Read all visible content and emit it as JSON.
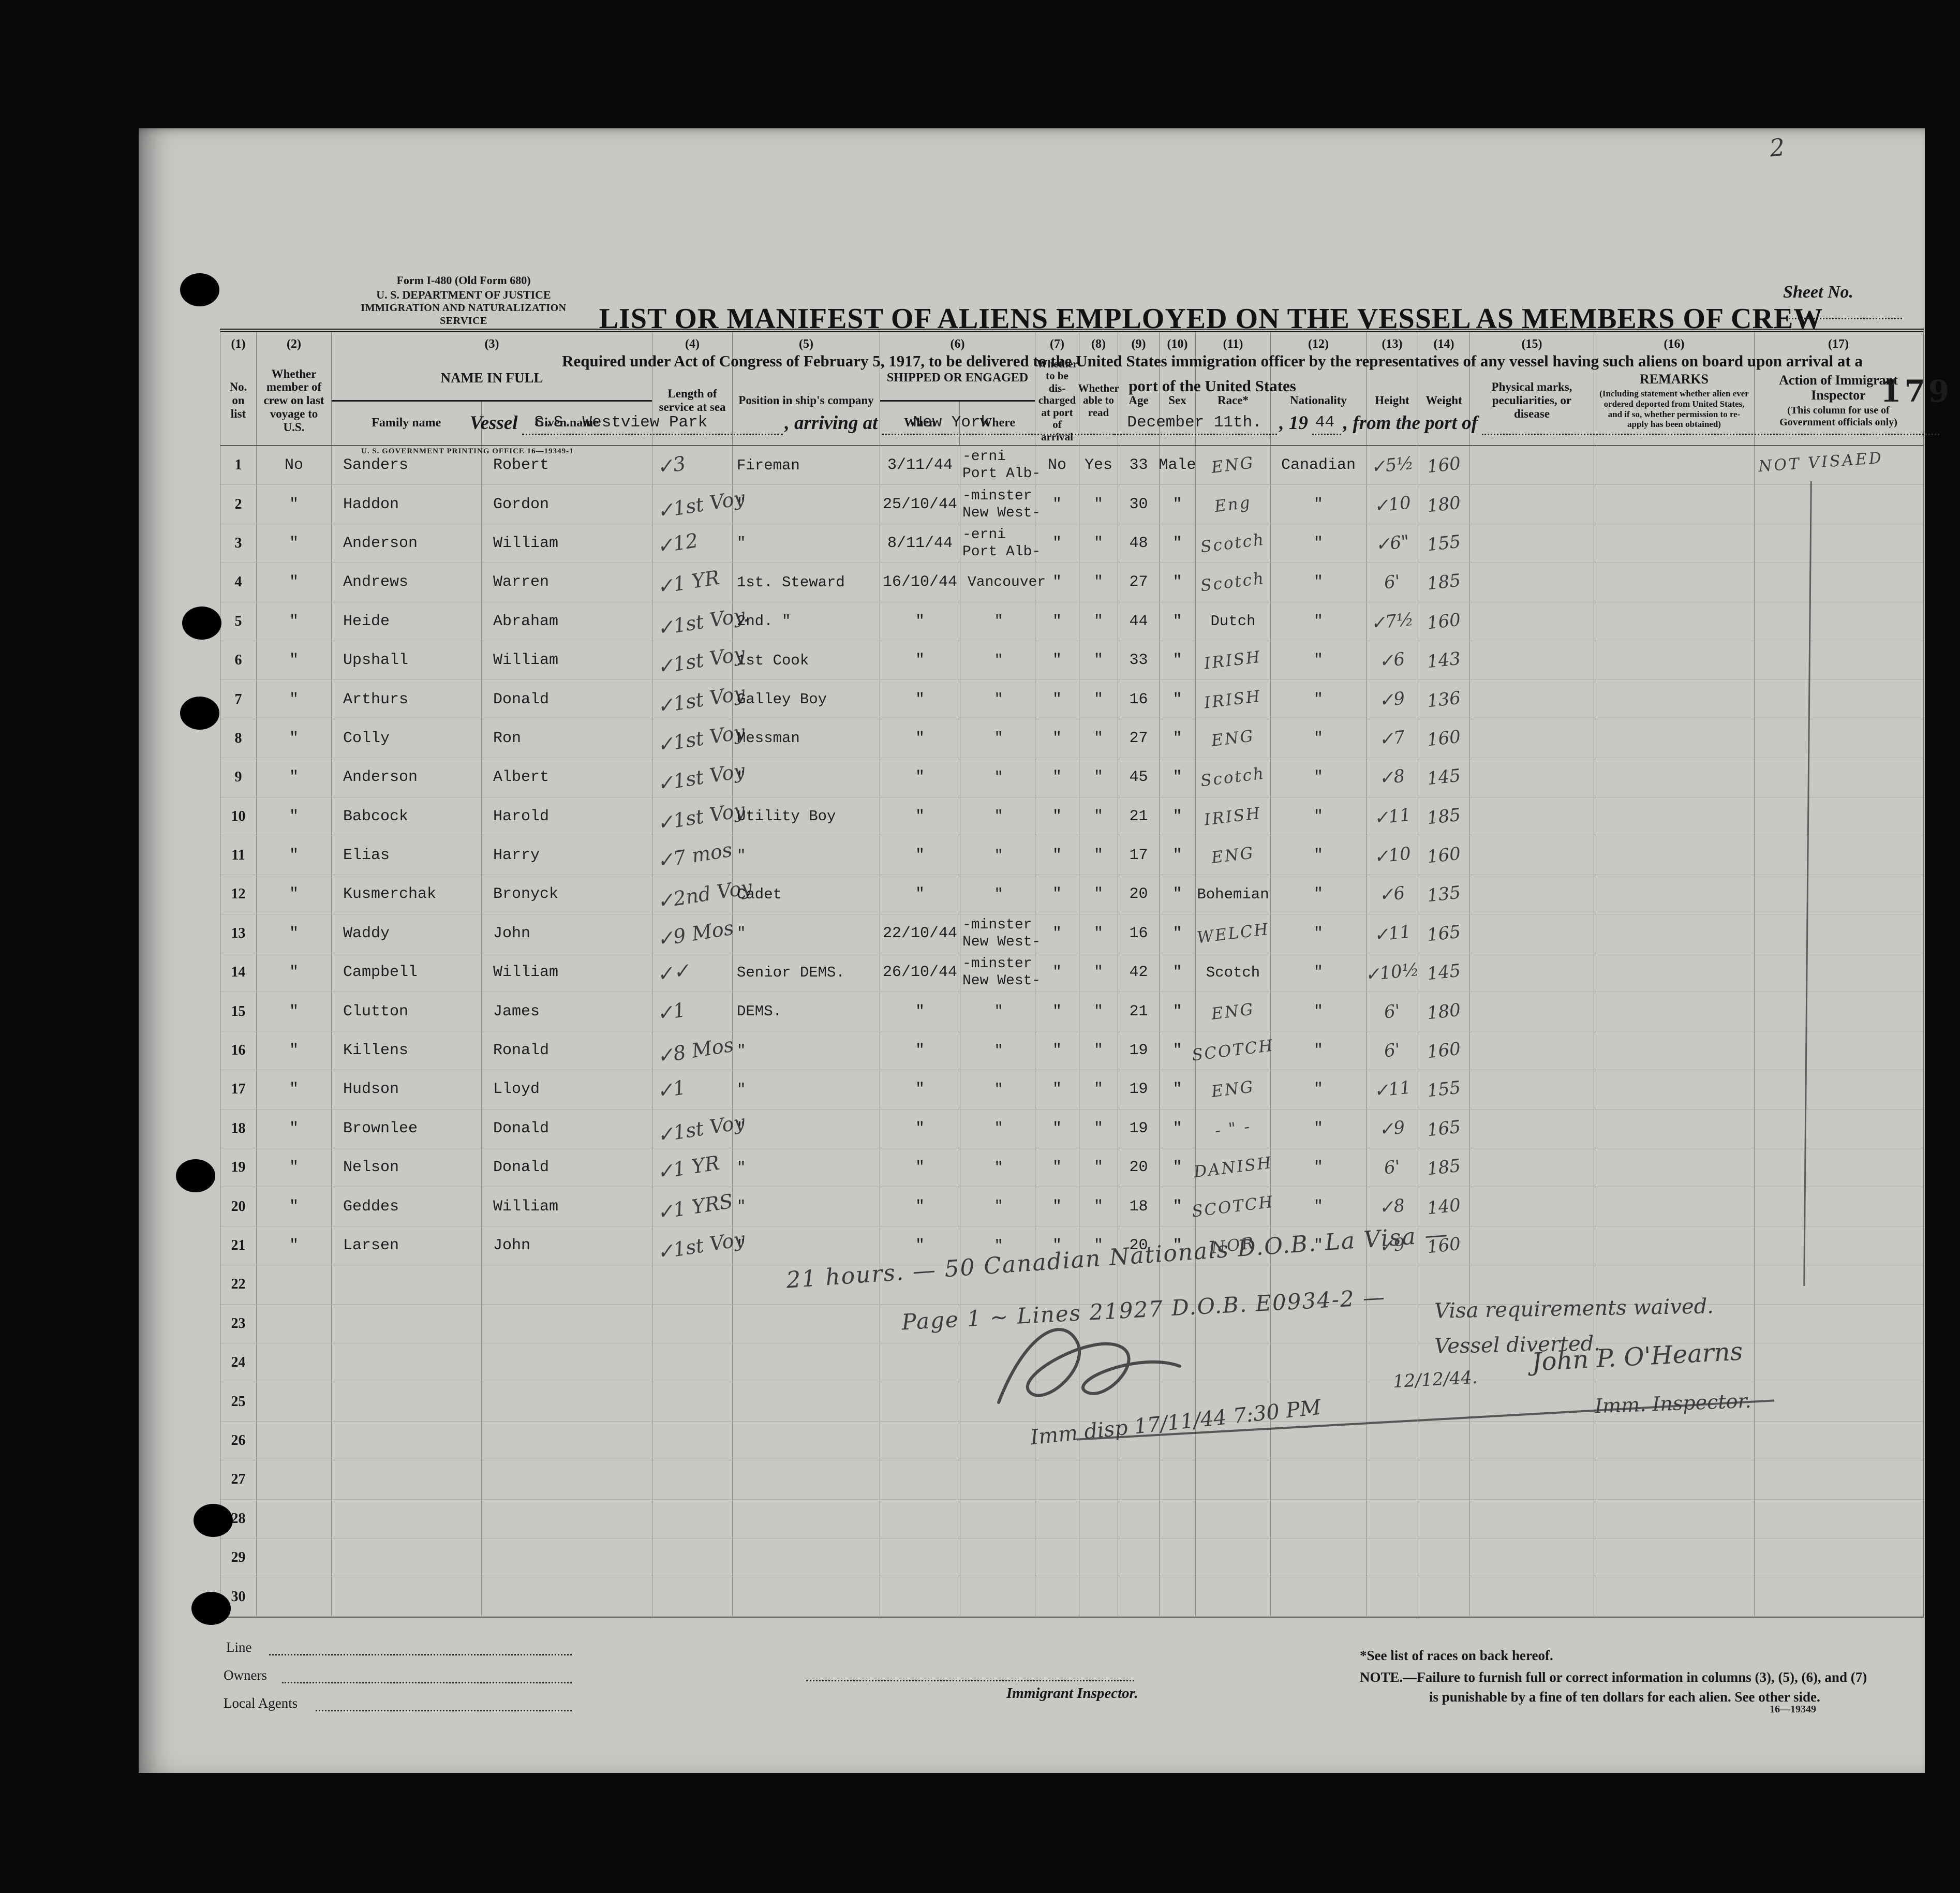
{
  "page": {
    "form_number": "Form I-480 (Old Form 680)",
    "department": "U. S. DEPARTMENT OF JUSTICE",
    "service": "IMMIGRATION AND NATURALIZATION SERVICE",
    "sheet_label": "Sheet No.",
    "sheet_value": "2",
    "title": "LIST OR MANIFEST OF ALIENS EMPLOYED ON THE VESSEL AS MEMBERS OF CREW",
    "subtitle_line1": "Required under Act of Congress of February 5, 1917, to be delivered to the United States immigration officer by the representatives of any vessel having such aliens on board upon arrival at a",
    "subtitle_line2": "port of the United States",
    "stamp_number": "179",
    "printing_office": "U. S. GOVERNMENT PRINTING OFFICE      16—19349-1",
    "vessel_label": "Vessel",
    "vessel_value": "S.S. Westview Park",
    "arriving_label": ", arriving at",
    "port_value": "New York",
    "date_value": "December 11th.",
    "year_label": ", 19",
    "year_value": "44",
    "from_port_label": ", from the port of"
  },
  "table": {
    "col_numbers": [
      "(1)",
      "(2)",
      "(3)",
      "(4)",
      "(5)",
      "(6)",
      "(7)",
      "(8)",
      "(9)",
      "(10)",
      "(11)",
      "(12)",
      "(13)",
      "(14)",
      "(15)",
      "(16)",
      "(17)"
    ],
    "headers": {
      "c1": "No. on list",
      "c2": "Whether member of crew on last voyage to U.S.",
      "c3": {
        "title": "NAME IN FULL",
        "sub1": "Family name",
        "sub2": "Given name"
      },
      "c4": "Length of service at sea",
      "c5": "Position in ship's company",
      "c6": {
        "title": "SHIPPED OR ENGAGED",
        "sub1": "When",
        "sub2": "Where"
      },
      "c7": "Whether to be dis-charged at port of arrival",
      "c8": "Whether able to read",
      "c9": "Age",
      "c10": "Sex",
      "c11": "Race*",
      "c12": "Nationality",
      "c13": "Height",
      "c14": "Weight",
      "c15": "Physical marks, peculiarities, or disease",
      "c16": {
        "title": "REMARKS",
        "sub": "(Including statement whether alien ever ordered deported from United States, and if so, whether permission to re-apply has been obtained)"
      },
      "c17": {
        "title": "Action of Immigrant Inspector",
        "sub": "(This column for use of Government officials only)"
      }
    }
  },
  "rows": [
    {
      "no": "1",
      "member": "No",
      "family": "Sanders",
      "given": "Robert",
      "service": "✓3",
      "pos": "Fireman",
      "when": "3/11/44",
      "where1": "-erni",
      "where2": "Port Alb-",
      "disch": "No",
      "read": "Yes",
      "age": "33",
      "sex": "Male",
      "race": "ENG",
      "race_style": "hand",
      "nat": "Canadian",
      "height": "✓5½",
      "weight": "160"
    },
    {
      "no": "2",
      "member": "\"",
      "family": "Haddon",
      "given": "Gordon",
      "service": "✓1st Voy",
      "pos": "\"",
      "when": "25/10/44",
      "where1": "-minster",
      "where2": "New West-",
      "disch": "\"",
      "read": "\"",
      "age": "30",
      "sex": "\"",
      "race": "Eng",
      "race_style": "hand",
      "nat": "\"",
      "height": "✓10",
      "weight": "180"
    },
    {
      "no": "3",
      "member": "\"",
      "family": "Anderson",
      "given": "William",
      "service": "✓12",
      "pos": "\"",
      "when": "8/11/44",
      "where1": "-erni",
      "where2": "Port Alb-",
      "disch": "\"",
      "read": "\"",
      "age": "48",
      "sex": "\"",
      "race": "Scotch",
      "race_style": "hand",
      "nat": "\"",
      "height": "✓6\"",
      "weight": "155"
    },
    {
      "no": "4",
      "member": "\"",
      "family": "Andrews",
      "given": "Warren",
      "service": "✓1 YR",
      "pos": "1st. Steward",
      "when": "16/10/44",
      "where1": "",
      "where2": "Vancouver",
      "disch": "\"",
      "read": "\"",
      "age": "27",
      "sex": "\"",
      "race": "Scotch",
      "race_style": "hand",
      "nat": "\"",
      "height": "6'",
      "weight": "185"
    },
    {
      "no": "5",
      "member": "\"",
      "family": "Heide",
      "given": "Abraham",
      "service": "✓1st Voy.",
      "pos": "2nd. \"",
      "when": "\"",
      "where1": "",
      "where2": "\"",
      "disch": "\"",
      "read": "\"",
      "age": "44",
      "sex": "\"",
      "race": "Dutch",
      "race_style": "type",
      "nat": "\"",
      "height": "✓7½",
      "weight": "160"
    },
    {
      "no": "6",
      "member": "\"",
      "family": "Upshall",
      "given": "William",
      "service": "✓1st Voy",
      "pos": "1st Cook",
      "when": "\"",
      "where1": "",
      "where2": "\"",
      "disch": "\"",
      "read": "\"",
      "age": "33",
      "sex": "\"",
      "race": "IRISH",
      "race_style": "hand",
      "nat": "\"",
      "height": "✓6",
      "weight": "143"
    },
    {
      "no": "7",
      "member": "\"",
      "family": "Arthurs",
      "given": "Donald",
      "service": "✓1st Voy",
      "pos": "Galley Boy",
      "when": "\"",
      "where1": "",
      "where2": "\"",
      "disch": "\"",
      "read": "\"",
      "age": "16",
      "sex": "\"",
      "race": "IRISH",
      "race_style": "hand",
      "nat": "\"",
      "height": "✓9",
      "weight": "136"
    },
    {
      "no": "8",
      "member": "\"",
      "family": "Colly",
      "given": "Ron",
      "service": "✓1st Voy",
      "pos": "Messman",
      "when": "\"",
      "where1": "",
      "where2": "\"",
      "disch": "\"",
      "read": "\"",
      "age": "27",
      "sex": "\"",
      "race": "ENG",
      "race_style": "hand",
      "nat": "\"",
      "height": "✓7",
      "weight": "160"
    },
    {
      "no": "9",
      "member": "\"",
      "family": "Anderson",
      "given": "Albert",
      "service": "✓1st Voy",
      "pos": "\"",
      "when": "\"",
      "where1": "",
      "where2": "\"",
      "disch": "\"",
      "read": "\"",
      "age": "45",
      "sex": "\"",
      "race": "Scotch",
      "race_style": "hand",
      "nat": "\"",
      "height": "✓8",
      "weight": "145"
    },
    {
      "no": "10",
      "member": "\"",
      "family": "Babcock",
      "given": "Harold",
      "service": "✓1st Voy",
      "pos": "Utility Boy",
      "when": "\"",
      "where1": "",
      "where2": "\"",
      "disch": "\"",
      "read": "\"",
      "age": "21",
      "sex": "\"",
      "race": "IRISH",
      "race_style": "hand",
      "nat": "\"",
      "height": "✓11",
      "weight": "185"
    },
    {
      "no": "11",
      "member": "\"",
      "family": "Elias",
      "given": "Harry",
      "service": "✓7 mos",
      "pos": "\"",
      "when": "\"",
      "where1": "",
      "where2": "\"",
      "disch": "\"",
      "read": "\"",
      "age": "17",
      "sex": "\"",
      "race": "ENG",
      "race_style": "hand",
      "nat": "\"",
      "height": "✓10",
      "weight": "160"
    },
    {
      "no": "12",
      "member": "\"",
      "family": "Kusmerchak",
      "given": "Bronyck",
      "service": "✓2nd Voy",
      "pos": "Cadet",
      "when": "\"",
      "where1": "",
      "where2": "\"",
      "disch": "\"",
      "read": "\"",
      "age": "20",
      "sex": "\"",
      "race": "Bohemian",
      "race_style": "type",
      "nat": "\"",
      "height": "✓6",
      "weight": "135"
    },
    {
      "no": "13",
      "member": "\"",
      "family": "Waddy",
      "given": "John",
      "service": "✓9 Mos",
      "pos": "\"",
      "when": "22/10/44",
      "where1": "-minster",
      "where2": "New West-",
      "disch": "\"",
      "read": "\"",
      "age": "16",
      "sex": "\"",
      "race": "WELCH",
      "race_style": "hand",
      "nat": "\"",
      "height": "✓11",
      "weight": "165"
    },
    {
      "no": "14",
      "member": "\"",
      "family": "Campbell",
      "given": "William",
      "service": "✓✓",
      "pos": "Senior DEMS.",
      "when": "26/10/44",
      "where1": "-minster",
      "where2": "New West-",
      "disch": "\"",
      "read": "\"",
      "age": "42",
      "sex": "\"",
      "race": "Scotch",
      "race_style": "type",
      "nat": "\"",
      "height": "✓10½",
      "weight": "145"
    },
    {
      "no": "15",
      "member": "\"",
      "family": "Clutton",
      "given": "James",
      "service": "✓1",
      "pos": "DEMS.",
      "when": "\"",
      "where1": "",
      "where2": "\"",
      "disch": "\"",
      "read": "\"",
      "age": "21",
      "sex": "\"",
      "race": "ENG",
      "race_style": "hand",
      "nat": "\"",
      "height": "6'",
      "weight": "180"
    },
    {
      "no": "16",
      "member": "\"",
      "family": "Killens",
      "given": "Ronald",
      "service": "✓8 Mos",
      "pos": "\"",
      "when": "\"",
      "where1": "",
      "where2": "\"",
      "disch": "\"",
      "read": "\"",
      "age": "19",
      "sex": "\"",
      "race": "SCOTCH",
      "race_style": "hand",
      "nat": "\"",
      "height": "6'",
      "weight": "160"
    },
    {
      "no": "17",
      "member": "\"",
      "family": "Hudson",
      "given": "Lloyd",
      "service": "✓1",
      "pos": "\"",
      "when": "\"",
      "where1": "",
      "where2": "\"",
      "disch": "\"",
      "read": "\"",
      "age": "19",
      "sex": "\"",
      "race": "ENG",
      "race_style": "hand",
      "nat": "\"",
      "height": "✓11",
      "weight": "155"
    },
    {
      "no": "18",
      "member": "\"",
      "family": "Brownlee",
      "given": "Donald",
      "service": "✓1st Voy",
      "pos": "\"",
      "when": "\"",
      "where1": "",
      "where2": "\"",
      "disch": "\"",
      "read": "\"",
      "age": "19",
      "sex": "\"",
      "race": "- \" -",
      "race_style": "hand",
      "nat": "\"",
      "height": "✓9",
      "weight": "165"
    },
    {
      "no": "19",
      "member": "\"",
      "family": "Nelson",
      "given": "Donald",
      "service": "✓1 YR",
      "pos": "\"",
      "when": "\"",
      "where1": "",
      "where2": "\"",
      "disch": "\"",
      "read": "\"",
      "age": "20",
      "sex": "\"",
      "race": "DANISH",
      "race_style": "hand",
      "nat": "\"",
      "height": "6'",
      "weight": "185"
    },
    {
      "no": "20",
      "member": "\"",
      "family": "Geddes",
      "given": "William",
      "service": "✓1 YRS",
      "pos": "\"",
      "when": "\"",
      "where1": "",
      "where2": "\"",
      "disch": "\"",
      "read": "\"",
      "age": "18",
      "sex": "\"",
      "race": "SCOTCH",
      "race_style": "hand",
      "nat": "\"",
      "height": "✓8",
      "weight": "140"
    },
    {
      "no": "21",
      "member": "\"",
      "family": "Larsen",
      "given": "John",
      "service": "✓1st Voy",
      "pos": "\"",
      "when": "\"",
      "where1": "",
      "where2": "\"",
      "disch": "\"",
      "read": "\"",
      "age": "20",
      "sex": "\"",
      "race": "NOR",
      "race_style": "hand",
      "nat": "\"",
      "height": "✓9",
      "weight": "160"
    },
    {
      "no": "22"
    },
    {
      "no": "23"
    },
    {
      "no": "24"
    },
    {
      "no": "25"
    },
    {
      "no": "26"
    },
    {
      "no": "27"
    },
    {
      "no": "28"
    },
    {
      "no": "29"
    },
    {
      "no": "30"
    }
  ],
  "annotations": {
    "not_visaed": "NOT VISAED",
    "note1": "21 hours. — 50 Canadian Nationals D.O.B. La Visa —",
    "note2": "Page 1 ~ Lines 21927 D.O.B. E0934-2 —",
    "note3": "Imm disp 17/11/44  7:30 PM",
    "visa_waived": "Visa requirements waived.",
    "vessel_diverted": "Vessel diverted.",
    "divert_date": "12/12/44.",
    "inspector_signature": "John P. O'Hearns",
    "inspector_title": "Imm. Inspector."
  },
  "footer": {
    "line_label": "Line",
    "owners_label": "Owners",
    "local_agents_label": "Local Agents",
    "immigrant_inspector_label": "Immigrant Inspector.",
    "races_note": "*See list of races on back hereof.",
    "note_line1": "NOTE.—Failure to furnish full or correct information in columns (3), (5), (6), and (7)",
    "note_line2": "is punishable by a fine of ten dollars for each alien.   See other side.",
    "plate_number": "16—19349"
  }
}
